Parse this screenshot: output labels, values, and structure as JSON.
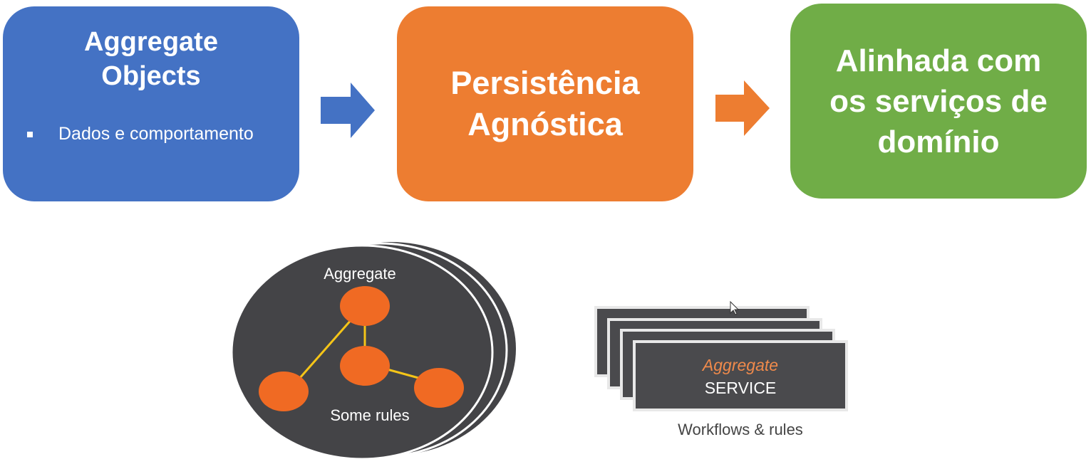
{
  "boxes": {
    "aggregate_objects": {
      "title": "Aggregate\nObjects",
      "bullet": "Dados e comportamento",
      "color": "#4472c4"
    },
    "persistence": {
      "title": "Persistência\nAgnóstica",
      "color": "#ed7d31"
    },
    "domain_services": {
      "title": "Alinhada com\nos serviços de\ndomínio",
      "color": "#70ad47"
    }
  },
  "arrows": {
    "first_color": "#4472c4",
    "second_color": "#ed7d31"
  },
  "aggregate_diagram": {
    "top_label": "Aggregate",
    "bottom_label": "Some rules",
    "disc_color": "#444447",
    "node_color": "#f06a23",
    "link_color": "#f5c518"
  },
  "service_diagram": {
    "label_italic": "Aggregate",
    "label_main": "SERVICE",
    "caption": "Workflows & rules",
    "card_color": "#4a4a4d",
    "accent_color": "#f08a4b"
  }
}
